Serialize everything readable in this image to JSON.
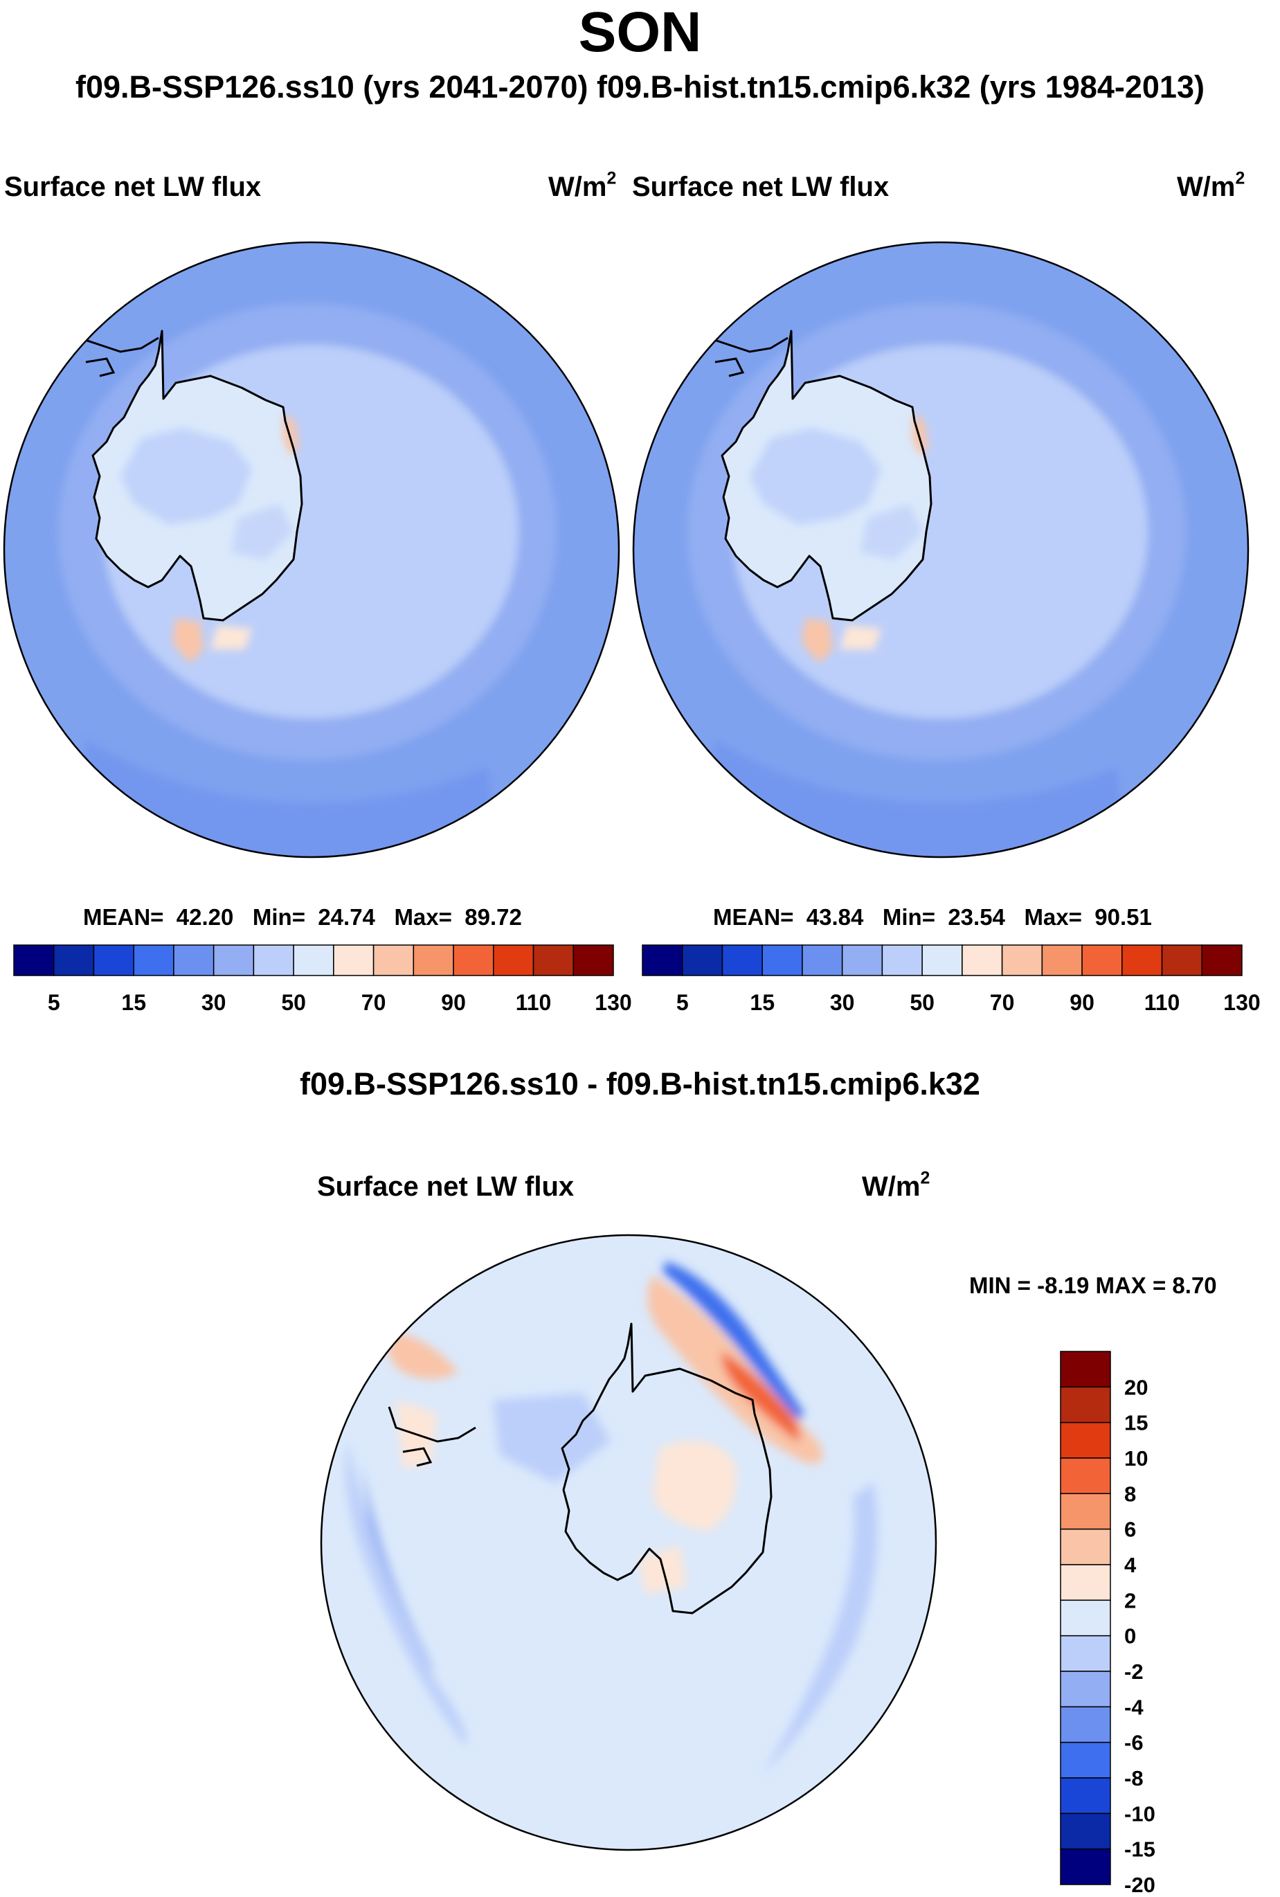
{
  "title": "SON",
  "run_header": "f09.B-SSP126.ss10 (yrs 2041-2070)  f09.B-hist.tn15.cmip6.k32 (yrs 1984-2013)",
  "panels": [
    {
      "variable": "Surface net LW flux",
      "units_base": "W/m",
      "units_exp": "2",
      "stats": {
        "mean_label": "MEAN=",
        "mean": "42.20",
        "min_label": "Min=",
        "min": "24.74",
        "max_label": "Max=",
        "max": "89.72"
      }
    },
    {
      "variable": "Surface net LW flux",
      "units_base": "W/m",
      "units_exp": "2",
      "stats": {
        "mean_label": "MEAN=",
        "mean": "43.84",
        "min_label": "Min=",
        "min": "23.54",
        "max_label": "Max=",
        "max": "90.51"
      }
    }
  ],
  "abs_colorbar": {
    "colors": [
      "#00007f",
      "#0a2aa8",
      "#1a46d8",
      "#3d6fee",
      "#6b90ef",
      "#93aef2",
      "#bccffa",
      "#dbe9fb",
      "#fde6d7",
      "#f9c4a7",
      "#f6946a",
      "#f26437",
      "#e13b12",
      "#b42b0f",
      "#7f0000"
    ],
    "labels": [
      "5",
      "15",
      "30",
      "50",
      "70",
      "90",
      "110",
      "130"
    ]
  },
  "difference": {
    "title": "f09.B-SSP126.ss10 - f09.B-hist.tn15.cmip6.k32",
    "variable": "Surface net LW flux",
    "units_base": "W/m",
    "units_exp": "2",
    "minmax": "MIN =  -8.19 MAX =   8.70"
  },
  "diff_colorbar": {
    "colors": [
      "#7f0000",
      "#b42b0f",
      "#e13b12",
      "#f26437",
      "#f6946a",
      "#f9c4a7",
      "#fde6d7",
      "#dbe9fb",
      "#bccffa",
      "#93aef2",
      "#6b90ef",
      "#3d6fee",
      "#1a46d8",
      "#0a2aa8",
      "#00007f"
    ],
    "labels": [
      "20",
      "15",
      "10",
      "8",
      "6",
      "4",
      "2",
      "0",
      "-2",
      "-4",
      "-6",
      "-8",
      "-10",
      "-15",
      "-20"
    ]
  },
  "map_colors": {
    "ocean_far": "#7fa2ef",
    "ocean_mid": "#93aef2",
    "ocean_band": "#6d93ee",
    "shelf": "#bccffa",
    "ice": "#dbe9fb",
    "interior": "#bccffa",
    "warm": "#f9c4a7",
    "warm_light": "#fde6d7",
    "diff_base": "#dbe9fb",
    "diff_cool": "#bccffa",
    "diff_cool2": "#93aef2",
    "diff_cold": "#3d6fee",
    "diff_warm": "#fde6d7",
    "diff_warm2": "#f9c4a7",
    "diff_hot": "#f26437"
  }
}
